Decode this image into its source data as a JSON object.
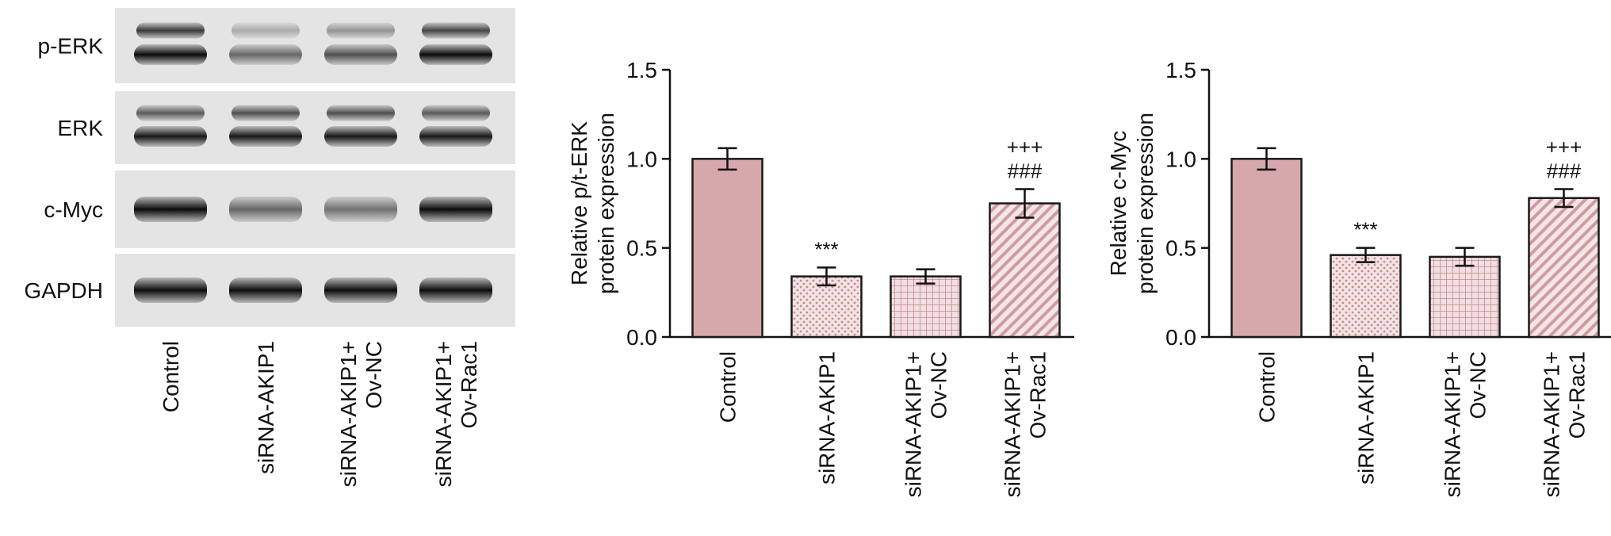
{
  "western_blot": {
    "row_labels": [
      "p-ERK",
      "ERK",
      "c-Myc",
      "GAPDH"
    ],
    "lane_labels": [
      [
        "Control"
      ],
      [
        "siRNA-AKIP1"
      ],
      [
        "siRNA-AKIP1+",
        "Ov-NC"
      ],
      [
        "siRNA-AKIP1+",
        "Ov-Rac1"
      ]
    ],
    "band_intensity": [
      [
        0.95,
        0.55,
        0.65,
        0.95
      ],
      [
        0.9,
        0.9,
        0.9,
        0.9
      ],
      [
        0.95,
        0.55,
        0.5,
        0.95
      ],
      [
        0.95,
        0.95,
        0.95,
        0.95
      ]
    ],
    "upper_band_intensity": [
      [
        0.75,
        0.25,
        0.35,
        0.7
      ],
      [
        0.6,
        0.65,
        0.65,
        0.6
      ],
      [
        0,
        0,
        0,
        0
      ],
      [
        0,
        0,
        0,
        0
      ]
    ]
  },
  "chart_data": [
    {
      "type": "bar",
      "ylabel_lines": [
        "Relative p/t-ERK",
        "protein expression"
      ],
      "categories": [
        [
          "Control"
        ],
        [
          "siRNA-AKIP1"
        ],
        [
          "siRNA-AKIP1+",
          "Ov-NC"
        ],
        [
          "siRNA-AKIP1+",
          "Ov-Rac1"
        ]
      ],
      "values": [
        1.0,
        0.34,
        0.34,
        0.75
      ],
      "errors": [
        0.06,
        0.05,
        0.04,
        0.08
      ],
      "annotations": [
        [],
        [
          "***"
        ],
        [],
        [
          "+++",
          "###"
        ]
      ],
      "patterns": [
        "solid",
        "dots",
        "grid",
        "diagonal"
      ],
      "ylim": [
        0,
        1.5
      ],
      "yticks": [
        "0.0",
        "0.5",
        "1.0",
        "1.5"
      ],
      "colors": {
        "fill": "#d7a8ab",
        "stroke": "#1a1a1a"
      }
    },
    {
      "type": "bar",
      "ylabel_lines": [
        "Relative c-Myc",
        "protein expression"
      ],
      "categories": [
        [
          "Control"
        ],
        [
          "siRNA-AKIP1"
        ],
        [
          "siRNA-AKIP1+",
          "Ov-NC"
        ],
        [
          "siRNA-AKIP1+",
          "Ov-Rac1"
        ]
      ],
      "values": [
        1.0,
        0.46,
        0.45,
        0.78
      ],
      "errors": [
        0.06,
        0.04,
        0.05,
        0.05
      ],
      "annotations": [
        [],
        [
          "***"
        ],
        [],
        [
          "+++",
          "###"
        ]
      ],
      "patterns": [
        "solid",
        "dots",
        "grid",
        "diagonal"
      ],
      "ylim": [
        0,
        1.5
      ],
      "yticks": [
        "0.0",
        "0.5",
        "1.0",
        "1.5"
      ],
      "colors": {
        "fill": "#d7a8ab",
        "stroke": "#1a1a1a"
      }
    }
  ]
}
